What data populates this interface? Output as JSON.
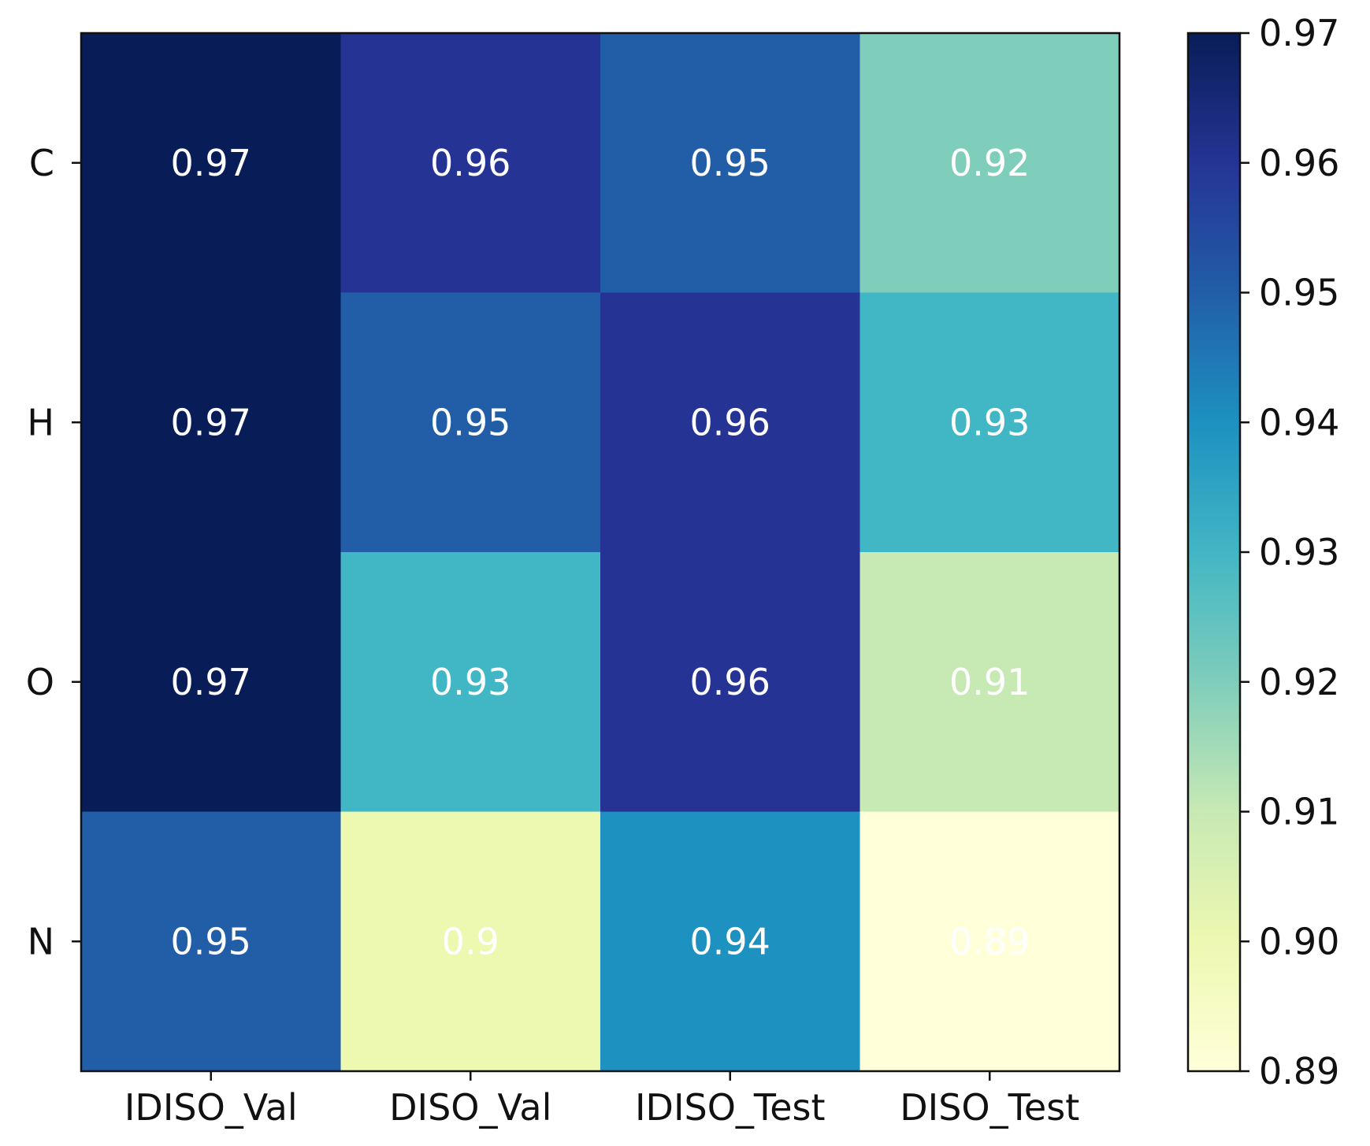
{
  "chart_data": {
    "type": "heatmap",
    "title": "",
    "xlabel": "",
    "ylabel": "",
    "columns": [
      "IDISO_Val",
      "DISO_Val",
      "IDISO_Test",
      "DISO_Test"
    ],
    "rows": [
      "C",
      "H",
      "O",
      "N"
    ],
    "values": [
      [
        0.97,
        0.96,
        0.95,
        0.92
      ],
      [
        0.97,
        0.95,
        0.96,
        0.93
      ],
      [
        0.97,
        0.93,
        0.96,
        0.91
      ],
      [
        0.95,
        0.9,
        0.94,
        0.89
      ]
    ],
    "cell_labels": [
      [
        "0.97",
        "0.96",
        "0.95",
        "0.92"
      ],
      [
        "0.97",
        "0.95",
        "0.96",
        "0.93"
      ],
      [
        "0.97",
        "0.93",
        "0.96",
        "0.91"
      ],
      [
        "0.95",
        "0.9",
        "0.94",
        "0.89"
      ]
    ],
    "colorbar": {
      "min": 0.89,
      "max": 0.97,
      "colormap": "YlGnBu",
      "ticks": [
        0.89,
        0.9,
        0.91,
        0.92,
        0.93,
        0.94,
        0.95,
        0.96,
        0.97
      ],
      "tick_labels": [
        "0.89",
        "0.90",
        "0.91",
        "0.92",
        "0.93",
        "0.94",
        "0.95",
        "0.96",
        "0.97"
      ],
      "placement": "right"
    },
    "colors": {
      "cell_text": "#ffffff",
      "frame": "#111111",
      "colormap_stops": [
        "#ffffd9",
        "#edf8b1",
        "#c7e9b4",
        "#7fcdbb",
        "#41b6c4",
        "#1d91c0",
        "#225ea8",
        "#253494",
        "#081d58"
      ]
    }
  }
}
